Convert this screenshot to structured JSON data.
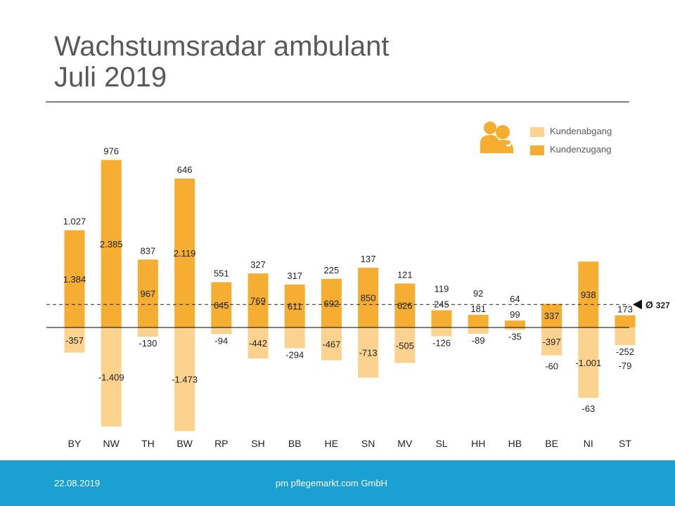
{
  "header": {
    "title_line1": "Wachstumsradar ambulant",
    "title_line2": "Juli 2019"
  },
  "footer": {
    "date": "22.08.2019",
    "company": "pm pflegemarkt.com GmbH"
  },
  "legend": {
    "icon": "caregiver-heart-icon",
    "items": [
      {
        "label": "Kundenabgang",
        "color": "#fcd38e"
      },
      {
        "label": "Kundenzugang",
        "color": "#f5ad32"
      }
    ]
  },
  "colors": {
    "zugang": "#f5ad32",
    "abgang": "#fcd38e",
    "text": "#222222",
    "footer": "#1aa0d2"
  },
  "chart_data": {
    "type": "bar",
    "categories": [
      "BY",
      "NW",
      "TH",
      "BW",
      "RP",
      "SH",
      "BB",
      "HE",
      "SN",
      "MV",
      "SL",
      "HH",
      "HB",
      "BE",
      "NI",
      "ST"
    ],
    "series": [
      {
        "name": "Kundenzugang",
        "values": [
          1384,
          2385,
          967,
          2119,
          645,
          769,
          611,
          692,
          850,
          626,
          245,
          181,
          99,
          337,
          938,
          173
        ],
        "labels": [
          "1.384",
          "2.385",
          "967",
          "2.119",
          "645",
          "769",
          "611",
          "692",
          "850",
          "626",
          "245",
          "181",
          "99",
          "337",
          "938",
          "173"
        ]
      },
      {
        "name": "Kundenabgang",
        "values": [
          -357,
          -1409,
          -130,
          -1473,
          -94,
          -442,
          -294,
          -467,
          -713,
          -505,
          -126,
          -89,
          -35,
          -397,
          -1001,
          -252
        ],
        "labels": [
          "-357",
          "-1.409",
          "-130",
          "-1.473",
          "-94",
          "-442",
          "-294",
          "-467",
          "-713",
          "-505",
          "-126",
          "-89",
          "-35",
          "-397",
          "-1.001",
          "-252"
        ]
      }
    ],
    "net": {
      "values": [
        1027,
        976,
        837,
        646,
        551,
        327,
        317,
        225,
        137,
        121,
        119,
        92,
        64,
        -60,
        -63,
        -79
      ],
      "labels": [
        "1.027",
        "976",
        "837",
        "646",
        "551",
        "327",
        "317",
        "225",
        "137",
        "121",
        "119",
        "92",
        "64",
        "-60",
        "-63",
        "-79"
      ]
    },
    "average": {
      "value": 327,
      "label": "Ø 327"
    },
    "title": "Wachstumsradar ambulant Juli 2019",
    "xlabel": "",
    "ylabel": "",
    "ylim": [
      -1700,
      2700
    ],
    "grid": false,
    "legend_position": "top-right"
  }
}
